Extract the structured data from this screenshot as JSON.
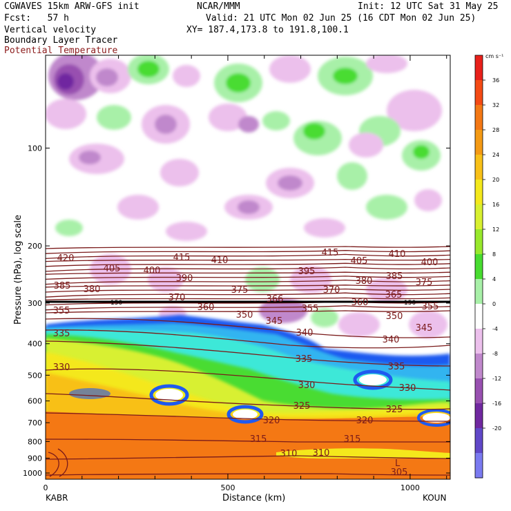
{
  "header": {
    "model": "CGWAVES 15km ARW-GFS init",
    "org": "NCAR/MMM",
    "init": "Init: 12 UTC Sat 31 May 25",
    "fcst": "Fcst:   57 h",
    "valid": "Valid: 21 UTC Mon 02 Jun 25 (16 CDT Mon 02 Jun 25)",
    "field1": "Vertical velocity",
    "field2": "Boundary Layer Tracer",
    "field3": "Potential Temperature",
    "xy": "XY= 187.4,173.8 to 191.8,100.1"
  },
  "colors": {
    "theta": "#7a1a1a",
    "field3_text": "#8b1a1a"
  },
  "chart_data": {
    "type": "heatmap",
    "ylabel": "Pressure (hPa), log scale",
    "xlabel": "Distance (km)",
    "x_ticks": [
      0,
      500,
      1000
    ],
    "x_range_km": [
      0,
      1110
    ],
    "y_ticks": [
      100,
      200,
      300,
      400,
      500,
      600,
      700,
      800,
      900,
      1000
    ],
    "left_station": "KABR",
    "right_station": "KOUN",
    "tropopause_marker": "150",
    "colorbar": {
      "unit": "cm s⁻¹",
      "levels": [
        36,
        32,
        28,
        24,
        20,
        16,
        12,
        8,
        4,
        0,
        -4,
        -8,
        -12,
        -16,
        -20
      ],
      "colors": [
        "#e8201a",
        "#f44a14",
        "#f47814",
        "#f49a14",
        "#f8c018",
        "#f4e81c",
        "#d8f030",
        "#98e82c",
        "#48dc30",
        "#a8f0a8",
        "#ffffff",
        "#ecc0ec",
        "#c088cc",
        "#9850b0",
        "#7028a0",
        "#6048c8",
        "#7a7af0"
      ]
    },
    "theta_labels": [
      {
        "v": "420",
        "x": 95,
        "y": 378
      },
      {
        "v": "415",
        "x": 263,
        "y": 377
      },
      {
        "v": "410",
        "x": 318,
        "y": 381
      },
      {
        "v": "415",
        "x": 478,
        "y": 370
      },
      {
        "v": "410",
        "x": 575,
        "y": 372
      },
      {
        "v": "405",
        "x": 520,
        "y": 382
      },
      {
        "v": "400",
        "x": 622,
        "y": 384
      },
      {
        "v": "405",
        "x": 162,
        "y": 393
      },
      {
        "v": "400",
        "x": 220,
        "y": 396
      },
      {
        "v": "395",
        "x": 444,
        "y": 397
      },
      {
        "v": "390",
        "x": 267,
        "y": 407
      },
      {
        "v": "385",
        "x": 90,
        "y": 418
      },
      {
        "v": "380",
        "x": 133,
        "y": 423
      },
      {
        "v": "385",
        "x": 571,
        "y": 404
      },
      {
        "v": "380",
        "x": 527,
        "y": 411
      },
      {
        "v": "375",
        "x": 614,
        "y": 413
      },
      {
        "v": "375",
        "x": 347,
        "y": 424
      },
      {
        "v": "370",
        "x": 480,
        "y": 424
      },
      {
        "v": "365",
        "x": 570,
        "y": 431
      },
      {
        "v": "370",
        "x": 256,
        "y": 435
      },
      {
        "v": "366",
        "x": 398,
        "y": 437
      },
      {
        "v": "360",
        "x": 521,
        "y": 442
      },
      {
        "v": "360",
        "x": 298,
        "y": 449
      },
      {
        "v": "355",
        "x": 449,
        "y": 451
      },
      {
        "v": "355",
        "x": 89,
        "y": 454
      },
      {
        "v": "355",
        "x": 623,
        "y": 448
      },
      {
        "v": "350",
        "x": 354,
        "y": 460
      },
      {
        "v": "345",
        "x": 397,
        "y": 469
      },
      {
        "v": "350",
        "x": 571,
        "y": 462
      },
      {
        "v": "345",
        "x": 614,
        "y": 479
      },
      {
        "v": "340",
        "x": 441,
        "y": 486
      },
      {
        "v": "335",
        "x": 89,
        "y": 487
      },
      {
        "v": "340",
        "x": 566,
        "y": 496
      },
      {
        "v": "335",
        "x": 440,
        "y": 524
      },
      {
        "v": "335",
        "x": 574,
        "y": 535
      },
      {
        "v": "330",
        "x": 89,
        "y": 536
      },
      {
        "v": "330",
        "x": 444,
        "y": 562
      },
      {
        "v": "330",
        "x": 590,
        "y": 566
      },
      {
        "v": "325",
        "x": 437,
        "y": 592
      },
      {
        "v": "325",
        "x": 571,
        "y": 597
      },
      {
        "v": "320",
        "x": 393,
        "y": 613
      },
      {
        "v": "320",
        "x": 528,
        "y": 613
      },
      {
        "v": "315",
        "x": 374,
        "y": 640
      },
      {
        "v": "315",
        "x": 510,
        "y": 640
      },
      {
        "v": "310",
        "x": 418,
        "y": 661
      },
      {
        "v": "310",
        "x": 465,
        "y": 660
      },
      {
        "v": "305",
        "x": 578,
        "y": 688
      }
    ],
    "low_marker": "L"
  }
}
